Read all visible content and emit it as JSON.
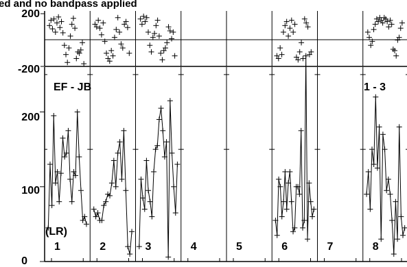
{
  "title": "ed and no bandpass applied",
  "baseline_label": "EF - JB",
  "polarization_label": "(LR)",
  "if_label": "1 - 3",
  "chart_data": [
    {
      "type": "scatter",
      "name": "phase",
      "ylim": [
        -200,
        200
      ],
      "yticks": [
        "200",
        "-200"
      ],
      "panels": [
        {
          "label": "1",
          "values": [
            110,
            150,
            85,
            160,
            60,
            130,
            175,
            95,
            140,
            55,
            -40,
            -110,
            -170,
            -60,
            30,
            120,
            165,
            90,
            -140,
            -90,
            -100,
            -75,
            -20,
            -180
          ]
        },
        {
          "label": "2",
          "values": [
            120,
            100,
            150,
            90,
            40,
            130,
            -10,
            -100,
            -140,
            -160,
            -80,
            -120,
            20,
            80,
            170,
            60,
            -30,
            -60,
            120,
            140,
            95,
            -100
          ]
        },
        {
          "label": "3",
          "values": [
            160,
            120,
            180,
            140,
            170,
            60,
            -40,
            -90,
            20,
            50,
            110,
            150,
            30,
            -100,
            -150,
            -80,
            -60,
            -20,
            100,
            70,
            10,
            60,
            -120
          ]
        },
        {
          "label": "4",
          "values": []
        },
        {
          "label": "5",
          "values": []
        },
        {
          "label": "6",
          "values": [
            -120,
            -140,
            -60,
            -110,
            60,
            110,
            140,
            30,
            90,
            150,
            60,
            120,
            -130,
            -150,
            -90,
            -20,
            -140,
            160,
            130,
            100,
            -110,
            -90
          ]
        },
        {
          "label": "7",
          "values": []
        },
        {
          "label": "8",
          "values": [
            60,
            20,
            -40,
            -10,
            80,
            120,
            160,
            140,
            170,
            150,
            130,
            170,
            160,
            140,
            100,
            150,
            120,
            -70,
            -80,
            -120,
            0,
            20,
            90,
            130
          ]
        }
      ]
    },
    {
      "type": "line",
      "name": "amplitude",
      "ylim": [
        0,
        260
      ],
      "yticks": [
        "200",
        "100",
        "0"
      ],
      "panels": [
        {
          "label": "1",
          "values": [
            45,
            130,
            75,
            195,
            105,
            120,
            80,
            118,
            165,
            140,
            145,
            175,
            110,
            80,
            120,
            115,
            200,
            140,
            95,
            55,
            60,
            50
          ]
        },
        {
          "label": "2",
          "values": [
            70,
            60,
            65,
            55,
            55,
            75,
            80,
            90,
            88,
            105,
            135,
            100,
            145,
            160,
            110,
            175,
            95,
            20,
            10,
            40
          ]
        },
        {
          "label": "3",
          "values": [
            20,
            110,
            85,
            70,
            135,
            95,
            80,
            60,
            120,
            150,
            155,
            190,
            205,
            175,
            140,
            160,
            6,
            215,
            145,
            100,
            65,
            130
          ]
        },
        {
          "label": "4",
          "values": []
        },
        {
          "label": "5",
          "values": []
        },
        {
          "label": "6",
          "values": [
            55,
            35,
            110,
            100,
            60,
            80,
            120,
            70,
            105,
            120,
            80,
            40,
            45,
            100,
            100,
            90,
            175,
            45,
            55,
            275,
            30,
            105,
            80,
            60,
            70
          ]
        },
        {
          "label": "7",
          "values": []
        },
        {
          "label": "8",
          "values": [
            90,
            120,
            70,
            150,
            130,
            220,
            125,
            180,
            30,
            170,
            150,
            95,
            110,
            90,
            55,
            10,
            80,
            30,
            180,
            60,
            35,
            45
          ]
        }
      ]
    }
  ]
}
